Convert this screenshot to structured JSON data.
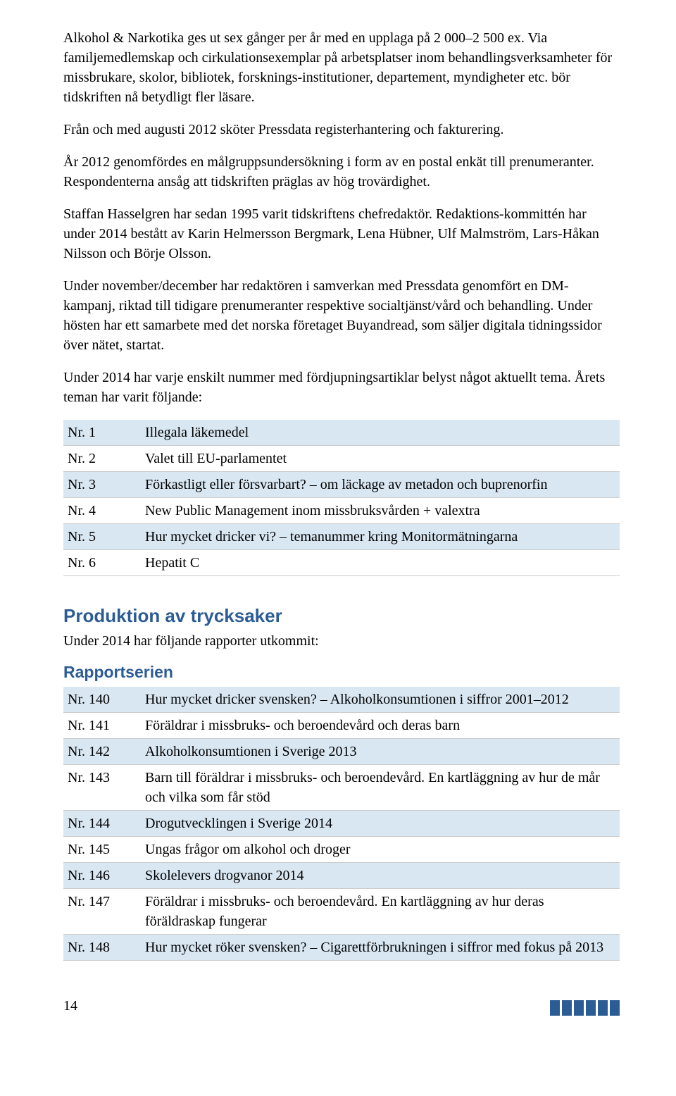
{
  "colors": {
    "heading": "#2c5c94",
    "subheading": "#2c5c94",
    "row_odd_bg": "#d9e7f2",
    "row_even_bg": "#ffffff",
    "logo_bar": "#2c5c94"
  },
  "paragraphs": {
    "p1": "Alkohol & Narkotika ges ut sex gånger per år med en upplaga på 2 000–2 500 ex. Via familjemedlemskap och cirkulationsexemplar på arbetsplatser inom behandlingsverksamheter för missbrukare, skolor, bibliotek, forsknings-institutioner, departement, myndigheter etc. bör tidskriften nå betydligt fler läsare.",
    "p2": "Från och med augusti 2012 sköter Pressdata registerhantering och fakturering.",
    "p3": "År 2012 genomfördes en målgruppsundersökning i form av en postal enkät till prenumeranter. Respondenterna ansåg att tidskriften präglas av hög trovärdighet.",
    "p4": "Staffan Hasselgren har sedan 1995 varit tidskriftens chefredaktör. Redaktions-kommittén har under 2014 bestått av Karin Helmersson Bergmark, Lena Hübner, Ulf Malmström, Lars-Håkan Nilsson och Börje Olsson.",
    "p5": "Under november/december har redaktören i samverkan med Pressdata genomfört en DM-kampanj, riktad till tidigare prenumeranter respektive socialtjänst/vård och behandling. Under hösten har ett samarbete med det norska företaget Buyandread, som säljer digitala tidningssidor över nätet, startat.",
    "p6": "Under 2014 har varje enskilt nummer med fördjupningsartiklar belyst något aktuellt tema. Årets teman har varit följande:"
  },
  "themes_table": {
    "rows": [
      {
        "nr": "Nr. 1",
        "text": "Illegala läkemedel"
      },
      {
        "nr": "Nr. 2",
        "text": "Valet till EU-parlamentet"
      },
      {
        "nr": "Nr. 3",
        "text": "Förkastligt eller försvarbart? – om läckage av metadon och buprenorfin"
      },
      {
        "nr": "Nr. 4",
        "text": "New Public Management inom missbruksvården + valextra"
      },
      {
        "nr": "Nr. 5",
        "text": "Hur mycket dricker vi? – temanummer kring Monitormätningarna"
      },
      {
        "nr": "Nr. 6",
        "text": "Hepatit C"
      }
    ]
  },
  "section_produktion": {
    "title": "Produktion av trycksaker",
    "intro": "Under 2014 har följande rapporter utkommit:"
  },
  "rapportserien": {
    "title": "Rapportserien",
    "rows": [
      {
        "nr": "Nr. 140",
        "text": "Hur mycket dricker svensken? – Alkoholkonsumtionen i siffror 2001–2012"
      },
      {
        "nr": "Nr. 141",
        "text": "Föräldrar i missbruks- och beroendevård och deras barn"
      },
      {
        "nr": "Nr. 142",
        "text": "Alkoholkonsumtionen i Sverige 2013"
      },
      {
        "nr": "Nr. 143",
        "text": "Barn till föräldrar i missbruks- och beroendevård. En kartläggning av hur de mår och vilka som får stöd"
      },
      {
        "nr": "Nr. 144",
        "text": "Drogutvecklingen i Sverige 2014"
      },
      {
        "nr": "Nr. 145",
        "text": "Ungas frågor om alkohol och droger"
      },
      {
        "nr": "Nr. 146",
        "text": "Skolelevers drogvanor 2014"
      },
      {
        "nr": "Nr. 147",
        "text": "Föräldrar i missbruks- och beroendevård. En kartläggning av hur deras föräldraskap fungerar"
      },
      {
        "nr": "Nr. 148",
        "text": "Hur mycket röker svensken? – Cigarettförbrukningen i siffror med fokus på 2013"
      }
    ]
  },
  "page_number": "14"
}
